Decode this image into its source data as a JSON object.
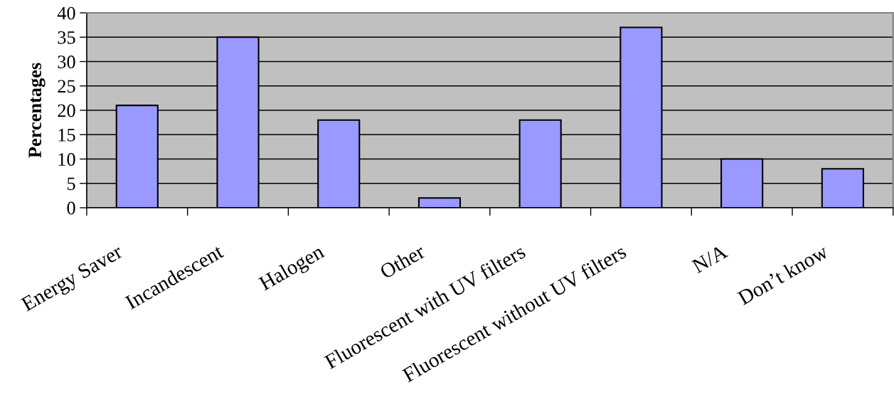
{
  "chart_data": {
    "type": "bar",
    "ylabel": "Percentages",
    "categories": [
      "Energy Saver",
      "Incandescent",
      "Halogen",
      "Other",
      "Fluorescent with UV filters",
      "Fluorescent without UV filters",
      "N/A",
      "Don’t know"
    ],
    "values": [
      21,
      35,
      18,
      2,
      18,
      37,
      10,
      8
    ],
    "color": "#9999ff",
    "ylim": [
      0,
      40
    ],
    "yticks": [
      0,
      5,
      10,
      15,
      20,
      25,
      30,
      35,
      40
    ],
    "grid": "y"
  }
}
